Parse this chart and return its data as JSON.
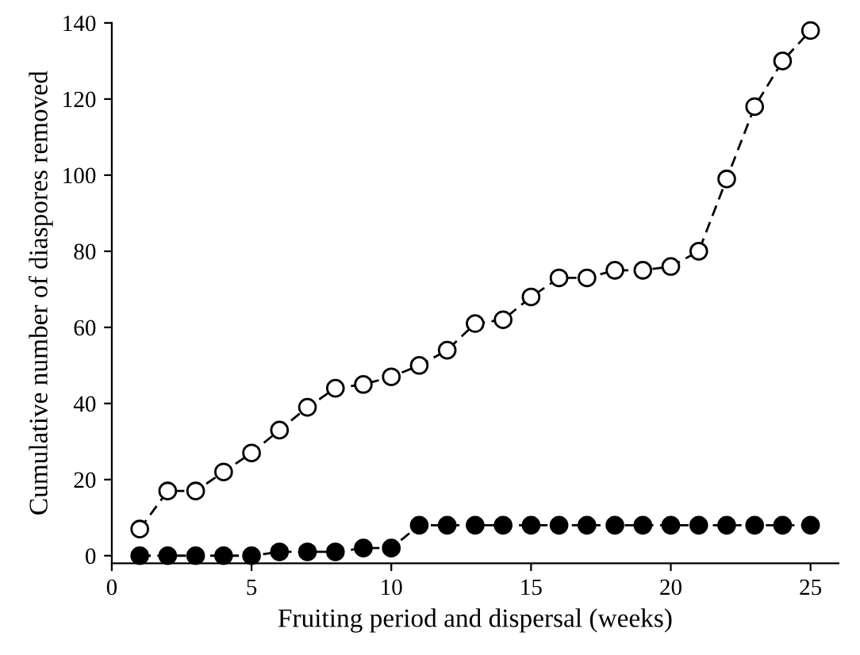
{
  "chart_data": {
    "type": "line",
    "xlabel": "Fruiting period and dispersal (weeks)",
    "ylabel": "Cumulative number of diaspores removed",
    "x": [
      1,
      2,
      3,
      4,
      5,
      6,
      7,
      8,
      9,
      10,
      11,
      12,
      13,
      14,
      15,
      16,
      17,
      18,
      19,
      20,
      21,
      22,
      23,
      24,
      25
    ],
    "series": [
      {
        "color": "#ffffff",
        "values": [
          7,
          17,
          17,
          22,
          27,
          33,
          39,
          44,
          45,
          47,
          50,
          54,
          61,
          62,
          68,
          73,
          73,
          75,
          75,
          76,
          80,
          99,
          118,
          130,
          138
        ]
      },
      {
        "color": "#000000",
        "values": [
          0,
          0,
          0,
          0,
          0,
          1,
          1,
          1,
          2,
          2,
          8,
          8,
          8,
          8,
          8,
          8,
          8,
          8,
          8,
          8,
          8,
          8,
          8,
          8,
          8
        ]
      }
    ],
    "xlim": [
      0,
      26
    ],
    "xticks": [
      0,
      5,
      10,
      15,
      20,
      25
    ],
    "ylim": [
      -2,
      140
    ],
    "yticks": [
      0,
      20,
      40,
      60,
      80,
      100,
      120,
      140
    ],
    "marker": "circle",
    "line_style": "dashed",
    "grid": false,
    "legend": false
  }
}
